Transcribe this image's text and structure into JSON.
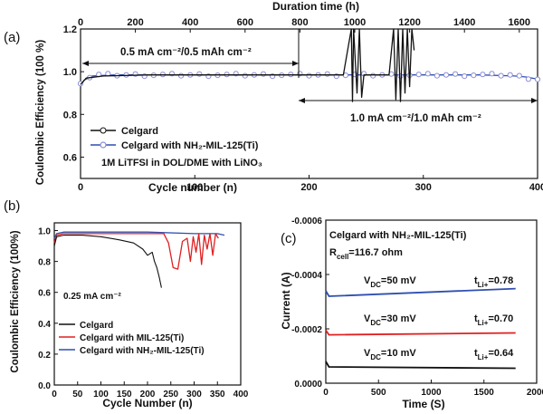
{
  "panel_a": {
    "label": "(a)",
    "top_axis_label": "Duration time (h)",
    "top_ticks": [
      "0",
      "200",
      "400",
      "600",
      "800",
      "1000",
      "1200",
      "1400",
      "1600"
    ],
    "legend": [
      "Celgard",
      "Celgard with NH₂-MIL-125(Ti)"
    ],
    "electrolyte": "1M LiTFSI in DOL/DME with LiNO₃",
    "annotation_1": "0.5 mA cm⁻²/0.5 mAh cm⁻²",
    "annotation_2": "1.0 mA cm⁻²/1.0 mAh cm⁻²"
  },
  "panel_b": {
    "label": "(b)",
    "current": "0.25 mA cm⁻²"
  },
  "panel_c": {
    "label": "(c)",
    "title": "Celgard with NH₂-MIL-125(Ti)",
    "rcell": "R_cell=116.7 ohm",
    "curve_labels": [
      {
        "vdc": "V_DC=50 mV",
        "tli": "t_Li+=0.78"
      },
      {
        "vdc": "V_DC=30 mV",
        "tli": "t_Li+=0.70"
      },
      {
        "vdc": "V_DC=10 mV",
        "tli": "t_Li+=0.64"
      }
    ]
  },
  "colors": {
    "celgard": "#111111",
    "mil125": "#e02020",
    "nh2_mil125": "#2f4fb0",
    "nh2_marker": "#8c8cd6"
  },
  "chart_data": [
    {
      "type": "line",
      "panel": "a",
      "xlabel": "Cycle number (n)",
      "ylabel": "Coulombic Efficiency (100 %)",
      "xlim": [
        0,
        400
      ],
      "ylim": [
        0.5,
        1.2
      ],
      "x_ticks": [
        0,
        100,
        200,
        300,
        400
      ],
      "y_ticks": [
        0.6,
        0.8,
        1.0,
        1.2
      ],
      "series": [
        {
          "name": "Celgard",
          "x": [
            0,
            5,
            20,
            60,
            100,
            150,
            200,
            230,
            237,
            238,
            239,
            242,
            244,
            246,
            248,
            270,
            274,
            276,
            278,
            280,
            282,
            284,
            286,
            288,
            290,
            292
          ],
          "y": [
            0.94,
            0.97,
            0.98,
            0.985,
            0.985,
            0.985,
            0.985,
            0.985,
            1.2,
            0.86,
            1.2,
            0.9,
            1.2,
            0.88,
            0.985,
            0.985,
            1.2,
            0.87,
            1.2,
            0.86,
            1.2,
            0.9,
            1.2,
            0.93,
            1.2,
            1.1
          ]
        },
        {
          "name": "Celgard with NH₂-MIL-125(Ti)",
          "x": [
            0,
            3,
            10,
            30,
            60,
            100,
            150,
            200,
            250,
            300,
            350,
            380,
            390,
            400
          ],
          "y": [
            0.93,
            0.96,
            0.98,
            0.985,
            0.985,
            0.985,
            0.985,
            0.985,
            0.985,
            0.985,
            0.985,
            0.98,
            0.975,
            0.965
          ]
        }
      ]
    },
    {
      "type": "line",
      "panel": "b",
      "xlabel": "Cycle Number (n)",
      "ylabel": "Coulombic Efficiency (100%)",
      "xlim": [
        0,
        400
      ],
      "ylim": [
        0,
        1.05
      ],
      "x_ticks": [
        0,
        50,
        100,
        150,
        200,
        250,
        300,
        350,
        400
      ],
      "y_ticks": [
        0.0,
        0.2,
        0.4,
        0.6,
        0.8,
        1.0
      ],
      "series": [
        {
          "name": "Celgard",
          "x": [
            0,
            5,
            20,
            60,
            100,
            140,
            170,
            190,
            200,
            210,
            215,
            220,
            225,
            230
          ],
          "y": [
            0.9,
            0.96,
            0.97,
            0.97,
            0.96,
            0.94,
            0.92,
            0.88,
            0.84,
            0.86,
            0.8,
            0.76,
            0.7,
            0.63
          ]
        },
        {
          "name": "Celgard with MIL-125(Ti)",
          "x": [
            0,
            5,
            20,
            100,
            200,
            235,
            245,
            255,
            265,
            275,
            285,
            292,
            298,
            304,
            310,
            316,
            322,
            328,
            334,
            340,
            346,
            352
          ],
          "y": [
            0.92,
            0.97,
            0.98,
            0.98,
            0.98,
            0.98,
            0.92,
            0.76,
            0.75,
            0.93,
            0.95,
            0.8,
            0.96,
            0.86,
            0.98,
            0.78,
            0.97,
            0.88,
            0.98,
            0.84,
            0.98,
            0.95
          ]
        },
        {
          "name": "Celgard with NH₂-MIL-125(Ti)",
          "x": [
            0,
            5,
            20,
            100,
            200,
            300,
            350,
            365
          ],
          "y": [
            0.95,
            0.98,
            0.99,
            0.99,
            0.99,
            0.98,
            0.98,
            0.97
          ]
        }
      ]
    },
    {
      "type": "line",
      "panel": "c",
      "xlabel": "Time (S)",
      "ylabel": "Current (A)",
      "xlim": [
        0,
        2000
      ],
      "ylim": [
        0.0,
        -0.0006
      ],
      "x_ticks": [
        0,
        500,
        1000,
        1500,
        2000
      ],
      "y_ticks": [
        0.0,
        -0.0002,
        -0.0004,
        -0.0006
      ],
      "series": [
        {
          "x": [
            0,
            30,
            1800
          ],
          "y": [
            -0.00034,
            -0.00032,
            -0.000348
          ]
        },
        {
          "x": [
            0,
            30,
            1800
          ],
          "y": [
            -0.000195,
            -0.000178,
            -0.000185
          ]
        },
        {
          "x": [
            0,
            30,
            1800
          ],
          "y": [
            -8e-05,
            -6e-05,
            -5.5e-05
          ]
        }
      ]
    }
  ]
}
